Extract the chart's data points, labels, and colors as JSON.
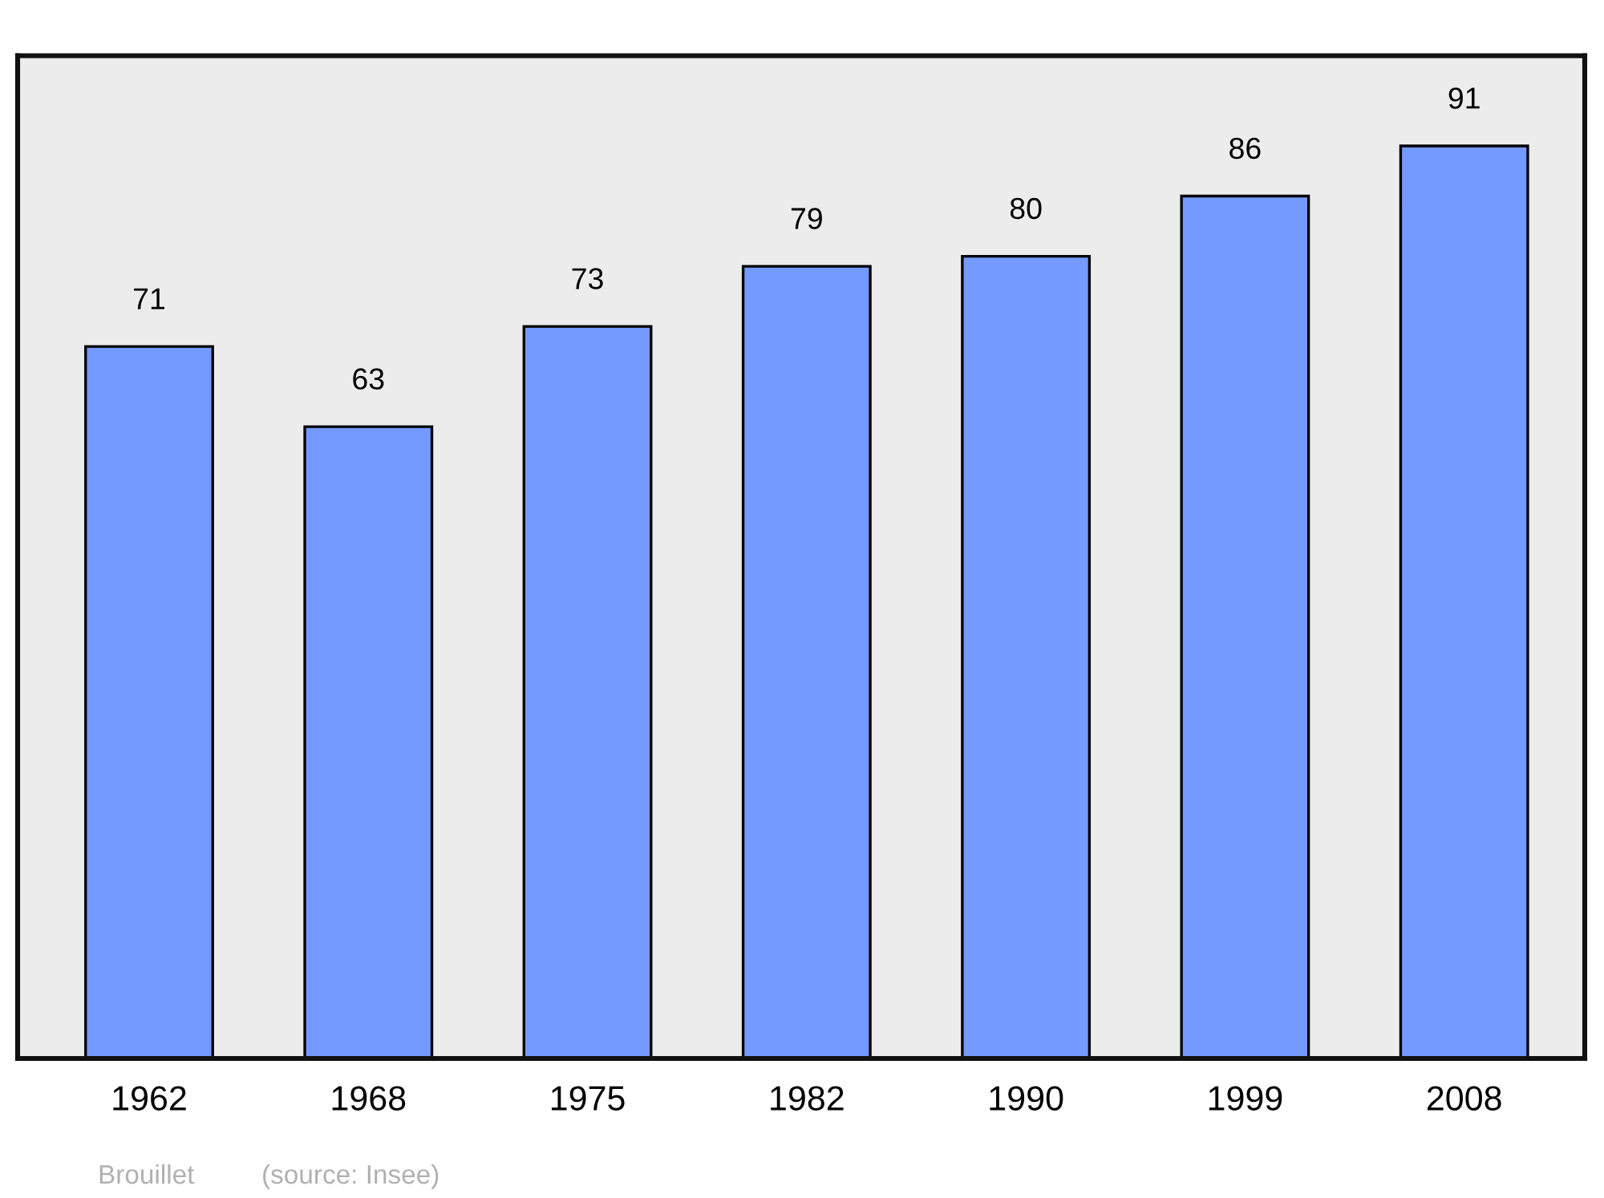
{
  "chart_data": {
    "type": "bar",
    "categories": [
      "1962",
      "1968",
      "1975",
      "1982",
      "1990",
      "1999",
      "2008"
    ],
    "values": [
      71,
      63,
      73,
      79,
      80,
      86,
      91
    ],
    "color": "#7499ff",
    "ylim": [
      0,
      100
    ],
    "data_labels": true,
    "tick_labels": "x",
    "grid": false,
    "legend": false,
    "annotations": [
      "Brouillet",
      "(source: Insee)"
    ]
  }
}
